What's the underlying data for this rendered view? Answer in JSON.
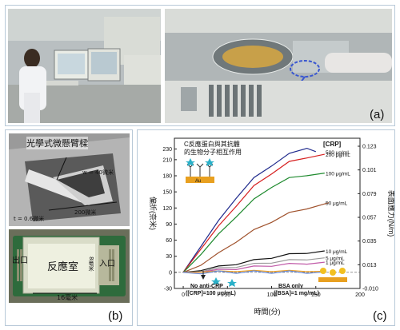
{
  "panel_a": {
    "label": "(a)"
  },
  "panel_b": {
    "label": "(b)",
    "title": "光學式微懸臂樑",
    "width_label": "w = 40微米",
    "thickness_label": "t = 0.6微米",
    "length_label": "200微米",
    "outlet_label": "出口",
    "chamber_label": "反應室",
    "inlet_label": "入口",
    "inner_width_label": "8毫米",
    "chip_length_label": "16毫米"
  },
  "panel_c": {
    "label": "(c)"
  },
  "chart_data": {
    "type": "line",
    "annotation_top": "C反應蛋白與其抗體",
    "annotation_top2": "的生物分子相互作用",
    "au_label": "Au",
    "legend_title": "[CRP]",
    "xlabel": "時間(分)",
    "ylabel_left": "偏折(奈米)",
    "ylabel_right": "表面應力(N/m)",
    "xlim": [
      -10,
      200
    ],
    "ylim": [
      -30,
      250
    ],
    "x_ticks": [
      "0",
      "50",
      "100",
      "150",
      "200"
    ],
    "y_ticks_left": [
      "-30",
      "0",
      "30",
      "60",
      "90",
      "120",
      "150",
      "180",
      "210",
      "230"
    ],
    "y_ticks_right": [
      "-0.010",
      "0.013",
      "0.035",
      "0.057",
      "0.079",
      "0.101",
      "0.123"
    ],
    "series": [
      {
        "name": "500 μg/mL",
        "color": "#1f2a8c",
        "x": [
          0,
          20,
          40,
          60,
          80,
          100,
          120,
          140,
          150
        ],
        "y": [
          0,
          50,
          95,
          140,
          175,
          200,
          220,
          233,
          225
        ]
      },
      {
        "name": "200 μg/mL",
        "color": "#d62020",
        "x": [
          0,
          20,
          40,
          60,
          80,
          100,
          120,
          140,
          160
        ],
        "y": [
          0,
          45,
          85,
          125,
          160,
          185,
          205,
          215,
          220
        ]
      },
      {
        "name": "100 μg/mL",
        "color": "#1e8a2e",
        "x": [
          0,
          20,
          40,
          60,
          80,
          100,
          120,
          140,
          160
        ],
        "y": [
          0,
          35,
          70,
          105,
          135,
          160,
          175,
          182,
          185
        ]
      },
      {
        "name": "50 μg/mL",
        "color": "#a0522d",
        "x": [
          0,
          20,
          40,
          60,
          80,
          100,
          120,
          140,
          165
        ],
        "y": [
          0,
          15,
          35,
          58,
          78,
          95,
          110,
          120,
          130
        ]
      },
      {
        "name": "10 μg/mL",
        "color": "#111111",
        "x": [
          0,
          20,
          40,
          60,
          80,
          100,
          120,
          140,
          160
        ],
        "y": [
          0,
          5,
          10,
          16,
          22,
          28,
          33,
          37,
          40
        ]
      },
      {
        "name": "5 μg/mL",
        "color": "#9a9a9a",
        "x": [
          0,
          20,
          40,
          60,
          80,
          100,
          120,
          140,
          160
        ],
        "y": [
          0,
          3,
          7,
          11,
          15,
          19,
          22,
          25,
          27
        ]
      },
      {
        "name": "1 μg/mL",
        "color": "#c05aa8",
        "x": [
          0,
          20,
          40,
          60,
          80,
          100,
          120,
          140,
          160
        ],
        "y": [
          0,
          2,
          4,
          7,
          10,
          13,
          15,
          17,
          19
        ]
      },
      {
        "name": "",
        "color": "#f0a020",
        "x": [
          0,
          20,
          40,
          60,
          80,
          100,
          120,
          140,
          160
        ],
        "y": [
          0,
          2,
          1,
          3,
          2,
          3,
          2,
          3,
          2
        ]
      },
      {
        "name": "",
        "color": "#6a8cd8",
        "x": [
          0,
          20,
          40,
          60,
          80,
          100,
          120,
          140,
          160
        ],
        "y": [
          0,
          -1,
          1,
          0,
          1,
          0,
          1,
          0,
          1
        ]
      }
    ],
    "bottom_annotations": [
      {
        "line1": "No anti-CRP",
        "line2": "([CRP]=100 μg/mL)"
      },
      {
        "line1": "BSA only",
        "line2": "([BSA]=1 mg/mL)"
      }
    ]
  }
}
